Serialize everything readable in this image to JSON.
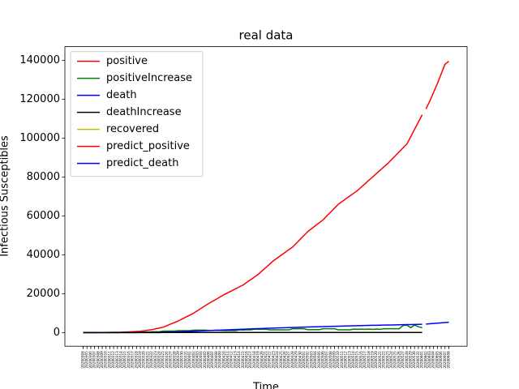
{
  "chart_data": {
    "type": "line",
    "title": "real data",
    "x_label": "Time",
    "y_label": "Infectious Susceptibles",
    "categories": [
      "20200304",
      "20200305",
      "20200306",
      "20200307",
      "20200308",
      "20200309",
      "20200310",
      "20200311",
      "20200312",
      "20200313",
      "20200314",
      "20200315",
      "20200316",
      "20200317",
      "20200318",
      "20200319",
      "20200320",
      "20200321",
      "20200322",
      "20200323",
      "20200324",
      "20200325",
      "20200326",
      "20200327",
      "20200328",
      "20200329",
      "20200330",
      "20200331",
      "20200401",
      "20200402",
      "20200403",
      "20200404",
      "20200405",
      "20200406",
      "20200407",
      "20200408",
      "20200409",
      "20200410",
      "20200411",
      "20200412",
      "20200413",
      "20200414",
      "20200415",
      "20200416",
      "20200417",
      "20200418",
      "20200419",
      "20200420",
      "20200421",
      "20200422",
      "20200423",
      "20200424",
      "20200425",
      "20200426",
      "20200427",
      "20200428",
      "20200429",
      "20200430",
      "20200501",
      "20200502",
      "20200503",
      "20200504",
      "20200505",
      "20200506",
      "20200507",
      "20200508",
      "20200509",
      "20200510",
      "20200511",
      "20200512",
      "20200513",
      "20200514",
      "20200515",
      "20200516",
      "20200517",
      "20200518",
      "20200519",
      "20200520",
      "20200521",
      "20200522",
      "20200523",
      "20200524",
      "20200525",
      "20200526",
      "20200527",
      "20200528",
      "20200529",
      "20200530",
      "20200531",
      "20200601",
      "20200602",
      "20200603",
      "20200604",
      "20200605",
      "20200606",
      "20200607",
      "20200608"
    ],
    "series": [
      {
        "name": "positive",
        "color": "#ff0000",
        "values": [
          0,
          10,
          20,
          30,
          40,
          50,
          80,
          110,
          140,
          170,
          200,
          300,
          400,
          500,
          600,
          700,
          970,
          1230,
          1500,
          1930,
          2370,
          2800,
          3600,
          4400,
          5200,
          6000,
          7000,
          8000,
          9000,
          10000,
          11250,
          12500,
          13750,
          15000,
          16100,
          17200,
          18400,
          19500,
          20500,
          21500,
          22500,
          23500,
          24500,
          25900,
          27200,
          28600,
          30000,
          31800,
          33500,
          35300,
          37000,
          38400,
          39800,
          41200,
          42600,
          44000,
          46000,
          48000,
          50000,
          52000,
          53500,
          55000,
          56500,
          58000,
          60000,
          62000,
          64000,
          66000,
          67400,
          68800,
          70200,
          71600,
          73000,
          74800,
          76500,
          78300,
          80000,
          81800,
          83500,
          85300,
          87000,
          89000,
          91000,
          93000,
          95000,
          97000,
          100700,
          104500,
          108200,
          112000,
          null,
          null,
          null,
          null,
          null,
          null,
          null
        ]
      },
      {
        "name": "positiveIncrease",
        "color": "#008000",
        "values": [
          0,
          10,
          10,
          10,
          10,
          10,
          30,
          30,
          30,
          30,
          100,
          100,
          100,
          100,
          100,
          270,
          260,
          270,
          430,
          440,
          430,
          800,
          800,
          800,
          800,
          1000,
          1000,
          1000,
          1000,
          1250,
          1250,
          1250,
          1250,
          1100,
          1100,
          1200,
          1100,
          1000,
          1000,
          1000,
          1000,
          1400,
          1300,
          1400,
          1400,
          1800,
          1700,
          1800,
          1700,
          1400,
          1400,
          1400,
          1400,
          1400,
          1400,
          2000,
          2000,
          2000,
          2000,
          1500,
          1500,
          1500,
          1500,
          2000,
          2000,
          2000,
          2000,
          1400,
          1400,
          1400,
          1400,
          1800,
          1700,
          1800,
          1700,
          1800,
          1700,
          1800,
          1700,
          2000,
          2000,
          2000,
          2000,
          2000,
          3700,
          3800,
          2500,
          3900,
          3000,
          2500,
          null,
          null,
          null,
          null,
          null,
          null,
          null
        ]
      },
      {
        "name": "death",
        "color": "#0000ff",
        "values": [
          0,
          0,
          0,
          0,
          0,
          1,
          1,
          2,
          3,
          5,
          8,
          12,
          18,
          25,
          35,
          50,
          70,
          95,
          120,
          150,
          185,
          225,
          270,
          320,
          375,
          435,
          500,
          570,
          640,
          715,
          790,
          870,
          950,
          1030,
          1110,
          1190,
          1270,
          1350,
          1430,
          1510,
          1590,
          1670,
          1750,
          1830,
          1900,
          1970,
          2040,
          2110,
          2180,
          2250,
          2320,
          2390,
          2450,
          2510,
          2570,
          2630,
          2690,
          2750,
          2810,
          2870,
          2930,
          2990,
          3050,
          3100,
          3150,
          3200,
          3250,
          3300,
          3350,
          3400,
          3450,
          3500,
          3550,
          3600,
          3650,
          3700,
          3740,
          3780,
          3820,
          3860,
          3900,
          3940,
          3980,
          4020,
          4060,
          4100,
          4140,
          4180,
          4220,
          4260,
          null,
          null,
          null,
          null,
          null,
          null,
          null
        ]
      },
      {
        "name": "deathIncrease",
        "color": "#000000",
        "values": [
          0,
          0,
          0,
          0,
          0,
          1,
          0,
          1,
          1,
          2,
          3,
          4,
          6,
          7,
          10,
          15,
          20,
          25,
          25,
          30,
          35,
          40,
          45,
          50,
          55,
          60,
          65,
          70,
          70,
          75,
          75,
          80,
          80,
          80,
          80,
          80,
          80,
          80,
          80,
          80,
          80,
          80,
          80,
          80,
          70,
          70,
          70,
          70,
          70,
          70,
          70,
          70,
          60,
          60,
          60,
          60,
          60,
          60,
          60,
          60,
          60,
          60,
          60,
          50,
          50,
          50,
          50,
          50,
          50,
          50,
          50,
          50,
          50,
          50,
          50,
          50,
          40,
          40,
          40,
          40,
          40,
          40,
          40,
          40,
          40,
          40,
          40,
          40,
          40,
          40,
          null,
          null,
          null,
          null,
          null,
          null,
          null
        ]
      },
      {
        "name": "recovered",
        "color": "#bfbf00",
        "values": [
          null,
          null,
          null,
          null,
          null,
          null,
          null,
          null,
          null,
          null,
          null,
          null,
          null,
          null,
          null,
          null,
          null,
          null,
          null,
          null,
          null,
          null,
          null,
          null,
          null,
          null,
          null,
          null,
          null,
          null,
          null,
          null,
          null,
          null,
          null,
          null,
          null,
          null,
          null,
          null,
          null,
          null,
          null,
          null,
          null,
          null,
          null,
          null,
          null,
          null,
          null,
          null,
          null,
          null,
          null,
          null,
          null,
          null,
          null,
          null,
          null,
          null,
          null,
          null,
          null,
          null,
          null,
          null,
          null,
          null,
          null,
          null,
          null,
          null,
          null,
          null,
          null,
          null,
          null,
          null,
          null,
          null,
          null,
          null,
          null,
          null,
          null,
          null,
          null,
          null,
          null,
          null,
          null,
          null,
          null,
          null,
          null
        ]
      },
      {
        "name": "predict_positive",
        "color": "#ff0000",
        "values": [
          null,
          null,
          null,
          null,
          null,
          null,
          null,
          null,
          null,
          null,
          null,
          null,
          null,
          null,
          null,
          null,
          null,
          null,
          null,
          null,
          null,
          null,
          null,
          null,
          null,
          null,
          null,
          null,
          null,
          null,
          null,
          null,
          null,
          null,
          null,
          null,
          null,
          null,
          null,
          null,
          null,
          null,
          null,
          null,
          null,
          null,
          null,
          null,
          null,
          null,
          null,
          null,
          null,
          null,
          null,
          null,
          null,
          null,
          null,
          null,
          null,
          null,
          null,
          null,
          null,
          null,
          null,
          null,
          null,
          null,
          null,
          null,
          null,
          null,
          null,
          null,
          null,
          null,
          null,
          null,
          null,
          null,
          null,
          null,
          null,
          null,
          null,
          null,
          null,
          null,
          115000,
          119000,
          123500,
          128000,
          133000,
          138000,
          139500
        ]
      },
      {
        "name": "predict_death",
        "color": "#0000ff",
        "values": [
          null,
          null,
          null,
          null,
          null,
          null,
          null,
          null,
          null,
          null,
          null,
          null,
          null,
          null,
          null,
          null,
          null,
          null,
          null,
          null,
          null,
          null,
          null,
          null,
          null,
          null,
          null,
          null,
          null,
          null,
          null,
          null,
          null,
          null,
          null,
          null,
          null,
          null,
          null,
          null,
          null,
          null,
          null,
          null,
          null,
          null,
          null,
          null,
          null,
          null,
          null,
          null,
          null,
          null,
          null,
          null,
          null,
          null,
          null,
          null,
          null,
          null,
          null,
          null,
          null,
          null,
          null,
          null,
          null,
          null,
          null,
          null,
          null,
          null,
          null,
          null,
          null,
          null,
          null,
          null,
          null,
          null,
          null,
          null,
          null,
          null,
          null,
          null,
          null,
          null,
          4400,
          4550,
          4700,
          4850,
          5000,
          5150,
          5300
        ]
      }
    ],
    "ylim": [
      -7000,
      147000
    ],
    "yticks": [
      0,
      20000,
      40000,
      60000,
      80000,
      100000,
      120000,
      140000
    ],
    "legend": "upper left"
  }
}
